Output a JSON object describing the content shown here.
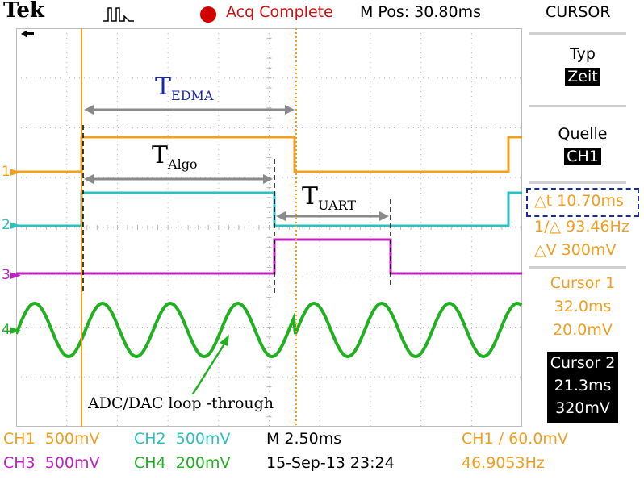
{
  "top_bar": {
    "brand": "Tek",
    "acquisition_status": "Acq Complete",
    "menu_title": "CURSOR",
    "horizontal_position": "M Pos: 30.80ms"
  },
  "right_panel": {
    "type_label": "Typ",
    "type_value": "Zeit",
    "source_label": "Quelle",
    "source_value": "CH1",
    "delta_t": "10.70ms",
    "inverse_delta_t": "93.46Hz",
    "delta_v": "300mV",
    "cursor1": {
      "label": "Cursor 1",
      "time": "32.0ms",
      "voltage": "20.0mV"
    },
    "cursor2": {
      "label": "Cursor 2",
      "time": "21.3ms",
      "voltage": "320mV"
    }
  },
  "channel_markers": [
    "1",
    "2",
    "3",
    "4"
  ],
  "annotations": {
    "t_edma": "T",
    "t_edma_sub": "EDMA",
    "t_algo": "T",
    "t_algo_sub": "Algo",
    "t_uart": "T",
    "t_uart_sub": "UART",
    "loop_label": "ADC/DAC loop -through"
  },
  "bottom_bar": {
    "ch1": "CH1",
    "ch1_scale": "500mV",
    "ch2": "CH2",
    "ch2_scale": "500mV",
    "ch3": "CH3",
    "ch3_scale": "500mV",
    "ch4": "CH4",
    "ch4_scale": "200mV",
    "timebase": "M 2.50ms",
    "date_time": "15-Sep-13 23:24",
    "trigger": "CH1 ∕ 60.0mV",
    "frequency": "46.9053Hz"
  },
  "colors": {
    "ch1": "#f0a020",
    "ch2": "#2cc0c0",
    "ch3": "#c020c0",
    "ch4": "#20b020",
    "annotation_blue": "#1a2aa0",
    "record_red": "#d00000"
  },
  "icons": [
    "tek-brand-logo",
    "trigger-waveform-icon",
    "record-dot-icon",
    "trigger-position-arrow-icon",
    "delta-icon"
  ]
}
